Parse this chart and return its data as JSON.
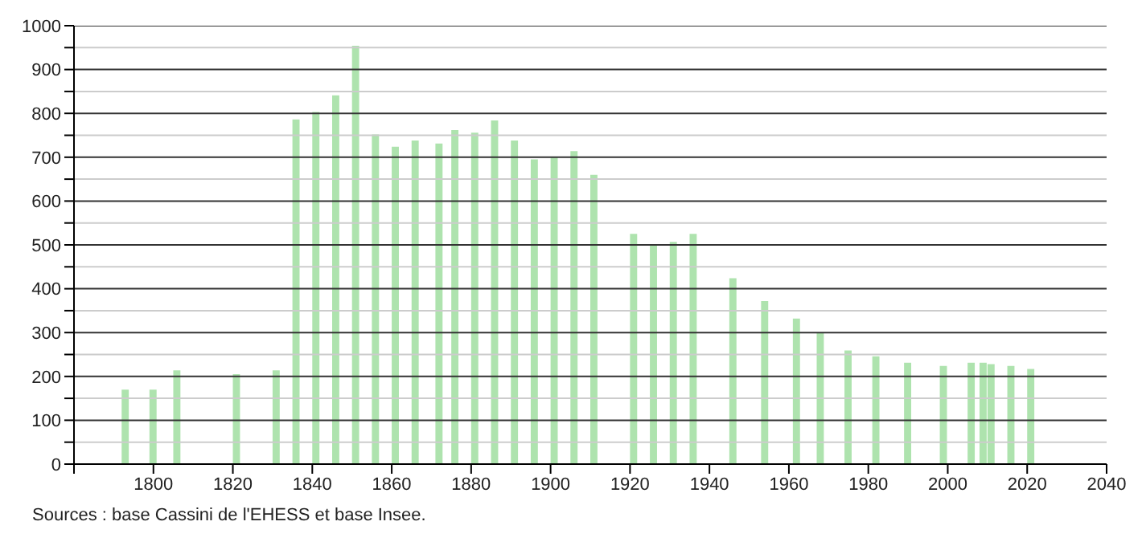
{
  "chart_data": {
    "type": "bar",
    "x": [
      1793,
      1800,
      1806,
      1821,
      1831,
      1836,
      1841,
      1846,
      1851,
      1856,
      1861,
      1866,
      1872,
      1876,
      1881,
      1886,
      1891,
      1896,
      1901,
      1906,
      1911,
      1921,
      1926,
      1931,
      1936,
      1946,
      1954,
      1962,
      1968,
      1975,
      1982,
      1990,
      1999,
      2006,
      2009,
      2011,
      2016,
      2021
    ],
    "values": [
      170,
      170,
      214,
      205,
      214,
      786,
      803,
      841,
      954,
      752,
      724,
      738,
      731,
      762,
      756,
      784,
      738,
      695,
      700,
      714,
      660,
      525,
      500,
      507,
      525,
      424,
      372,
      332,
      300,
      259,
      246,
      231,
      224,
      231,
      231,
      228,
      224,
      217
    ],
    "color": "#aee3ae",
    "xlim": [
      1780,
      2040
    ],
    "xticks": [
      {
        "value": 1780,
        "label": null
      },
      1800,
      1820,
      1840,
      1860,
      1880,
      1900,
      1920,
      1940,
      1960,
      1980,
      2000,
      2020,
      2040
    ],
    "ylim": [
      0,
      1000
    ],
    "yticks": [
      0,
      {
        "value": 50,
        "label": null
      },
      100,
      {
        "value": 150,
        "label": null
      },
      200,
      {
        "value": 250,
        "label": null
      },
      300,
      {
        "value": 350,
        "label": null
      },
      400,
      {
        "value": 450,
        "label": null
      },
      500,
      {
        "value": 550,
        "label": null
      },
      600,
      {
        "value": 650,
        "label": null
      },
      700,
      {
        "value": 750,
        "label": null
      },
      800,
      {
        "value": 850,
        "label": null
      },
      900,
      {
        "value": 950,
        "label": null
      },
      1000
    ],
    "grid": "y",
    "annotations": [
      "Sources : base Cassini de l'EHESS et base Insee."
    ]
  }
}
